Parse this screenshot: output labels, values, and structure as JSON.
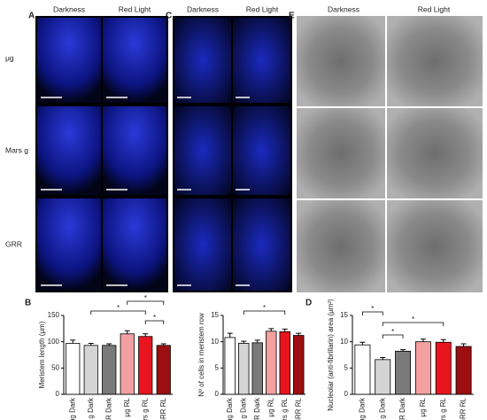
{
  "panels": {
    "A": {
      "label": "A",
      "columns": [
        "Darkness",
        "Red Light"
      ]
    },
    "C": {
      "label": "C",
      "columns": [
        "Darkness",
        "Red Light"
      ]
    },
    "E": {
      "label": "E",
      "columns": [
        "Darkness",
        "Red Light"
      ]
    },
    "rows": [
      "μg",
      "Mars g",
      "GRR"
    ]
  },
  "chart_data": [
    {
      "type": "bar",
      "panel_label": "B",
      "y_label": "Meristem length (μm)",
      "categories": [
        "μg Dark",
        "Mars g Dark",
        "GRR Dark",
        "μg RL",
        "Mars g RL",
        "GRR RL"
      ],
      "values": [
        97,
        93,
        93,
        115,
        110,
        93
      ],
      "errors": [
        6,
        4,
        3,
        6,
        5,
        3
      ],
      "colors": [
        "#ffffff",
        "#d4d4d4",
        "#7a7a7a",
        "#f4a0a0",
        "#e8141e",
        "#9c0e10"
      ],
      "ylim": [
        0,
        150
      ],
      "yticks": [
        0,
        50,
        100,
        150
      ],
      "annotations": [
        "*",
        "*",
        "*"
      ]
    },
    {
      "type": "bar",
      "y_label": "Nº of cells in meristem row",
      "categories": [
        "μg Dark",
        "Mars g Dark",
        "GRR Dark",
        "μg RL",
        "Mars g RL",
        "GRR RL"
      ],
      "values": [
        10.8,
        9.7,
        9.8,
        12,
        11.9,
        11.2
      ],
      "errors": [
        0.8,
        0.4,
        0.5,
        0.5,
        0.5,
        0.4
      ],
      "colors": [
        "#ffffff",
        "#d4d4d4",
        "#7a7a7a",
        "#f4a0a0",
        "#e8141e",
        "#9c0e10"
      ],
      "ylim": [
        0,
        15
      ],
      "yticks": [
        0,
        5,
        10,
        15
      ],
      "annotations": [
        "*"
      ]
    },
    {
      "type": "bar",
      "panel_label": "D",
      "y_label": "Nucleolar (anti-fibrillarin) area (μm²)",
      "categories": [
        "μg Dark",
        "Mars g Dark",
        "GRR Dark",
        "μg RL",
        "Mars g RL",
        "GRR RL"
      ],
      "values": [
        9.4,
        6.6,
        8.2,
        10,
        9.9,
        9.1
      ],
      "errors": [
        0.5,
        0.4,
        0.3,
        0.5,
        0.5,
        0.5
      ],
      "colors": [
        "#ffffff",
        "#d4d4d4",
        "#7a7a7a",
        "#f4a0a0",
        "#e8141e",
        "#9c0e10"
      ],
      "ylim": [
        0,
        15
      ],
      "yticks": [
        0,
        5,
        10,
        15
      ],
      "annotations": [
        "*",
        "*",
        "*"
      ]
    }
  ]
}
